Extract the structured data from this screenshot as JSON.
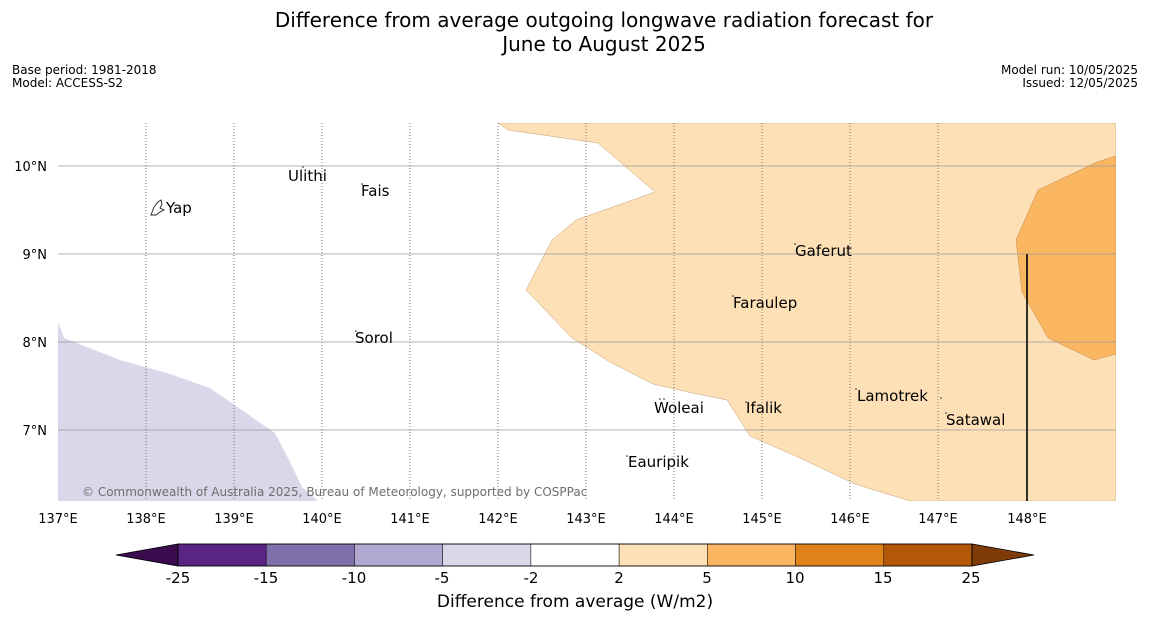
{
  "title": {
    "line1": "Difference from average outgoing longwave radiation forecast for",
    "line2": "June to August 2025"
  },
  "meta_left": {
    "base_period": "Base period: 1981-2018",
    "model": "Model: ACCESS-S2"
  },
  "meta_right": {
    "model_run": "Model run: 10/05/2025",
    "issued": "Issued: 12/05/2025"
  },
  "copyright": "© Commonwealth of Australia 2025, Bureau of Meteorology, supported by COSPPac",
  "map": {
    "lon_range": [
      137,
      149
    ],
    "lat_range": [
      6.2,
      10.5
    ],
    "lon_ticks": [
      137,
      138,
      139,
      140,
      141,
      142,
      143,
      144,
      145,
      146,
      147,
      148
    ],
    "lon_tick_labels": [
      "137°E",
      "138°E",
      "139°E",
      "140°E",
      "141°E",
      "142°E",
      "143°E",
      "144°E",
      "145°E",
      "146°E",
      "147°E",
      "148°E"
    ],
    "lat_ticks": [
      7,
      8,
      9,
      10
    ],
    "lat_tick_labels": [
      "7°N",
      "8°N",
      "9°N",
      "10°N"
    ],
    "places": [
      {
        "name": "Yap",
        "lon": 138.1,
        "lat": 9.5
      },
      {
        "name": "Ulithi",
        "lon": 139.6,
        "lat": 9.9
      },
      {
        "name": "Fais",
        "lon": 140.5,
        "lat": 9.75
      },
      {
        "name": "Sorol",
        "lon": 140.4,
        "lat": 8.05
      },
      {
        "name": "Gaferut",
        "lon": 145.35,
        "lat": 9.05
      },
      {
        "name": "Faraulep",
        "lon": 144.65,
        "lat": 8.45
      },
      {
        "name": "Woleai",
        "lon": 143.8,
        "lat": 7.3
      },
      {
        "name": "Ifalik",
        "lon": 144.95,
        "lat": 7.28
      },
      {
        "name": "Lamotrek",
        "lon": 146.1,
        "lat": 7.42
      },
      {
        "name": "Satawal",
        "lon": 147.1,
        "lat": 7.15
      },
      {
        "name": "Eauripik",
        "lon": 143.5,
        "lat": 6.65
      }
    ]
  },
  "colorbar": {
    "boundaries": [
      "-25",
      "-15",
      "-10",
      "-5",
      "-2",
      "2",
      "5",
      "10",
      "15",
      "25"
    ],
    "colors": [
      "#5a2484",
      "#7f6fab",
      "#b1a9d2",
      "#d8d8ea",
      "#ffffff",
      "#fde0b6",
      "#fbb661",
      "#e0821a",
      "#b35806"
    ],
    "under_color": "#3a0b4f",
    "over_color": "#7f3b08",
    "label": "Difference from average (W/m2)"
  }
}
